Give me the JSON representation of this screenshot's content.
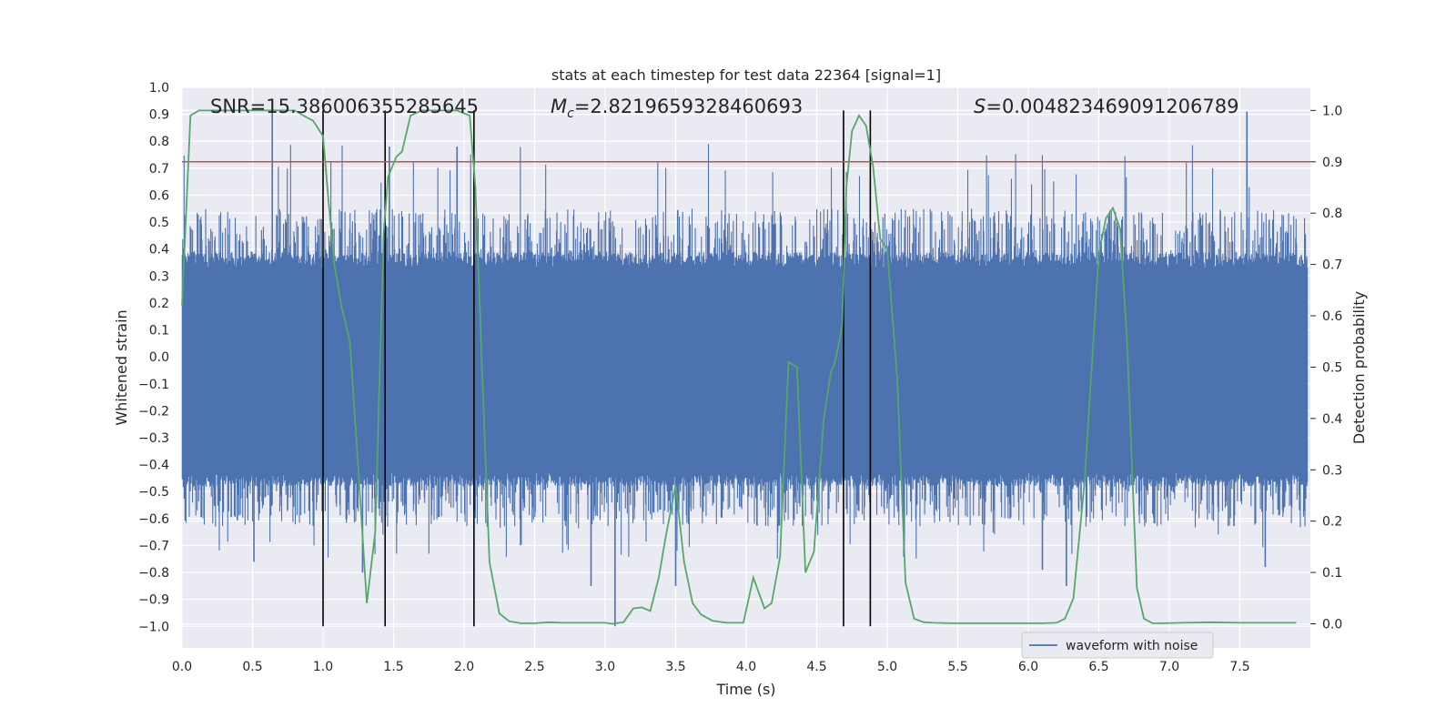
{
  "chart_data": {
    "type": "line",
    "title": "stats at each timestep for test data 22364 [signal=1]",
    "xlabel": "Time (s)",
    "ylabel_left": "Whitened strain",
    "ylabel_right": "Detection probability",
    "xlim": [
      0,
      8
    ],
    "ylim_left": [
      -1.08,
      1.0
    ],
    "ylim_right": [
      -0.047,
      1.045
    ],
    "xticks": [
      "0.0",
      "0.5",
      "1.0",
      "1.5",
      "2.0",
      "2.5",
      "3.0",
      "3.5",
      "4.0",
      "4.5",
      "5.0",
      "5.5",
      "6.0",
      "6.5",
      "7.0",
      "7.5"
    ],
    "yticks_left": [
      "1.0",
      "0.9",
      "0.8",
      "0.7",
      "0.6",
      "0.5",
      "0.4",
      "0.3",
      "0.2",
      "0.1",
      "0.0",
      "−0.1",
      "−0.2",
      "−0.3",
      "−0.4",
      "−0.5",
      "−0.6",
      "−0.7",
      "−0.8",
      "−0.9",
      "−1.0"
    ],
    "yticks_right": [
      "1.0",
      "0.9",
      "0.8",
      "0.7",
      "0.6",
      "0.5",
      "0.4",
      "0.3",
      "0.2",
      "0.1",
      "0.0"
    ],
    "grid": true,
    "annotations": {
      "snr": "SNR=15.386006355285645",
      "mc_symbol": "M",
      "mc_sub": "c",
      "mc_value": "=2.8219659328460693",
      "s_symbol": "S",
      "s_value": "=0.004823469091206789"
    },
    "threshold": {
      "value": 0.9,
      "axis": "right",
      "color": "#c44e52"
    },
    "vertical_lines": [
      1.0,
      1.44,
      2.07,
      4.69,
      4.88
    ],
    "series": [
      {
        "name": "waveform with noise",
        "axis": "left",
        "color": "#4c72b0",
        "envelope": {
          "typical_upper": 0.33,
          "typical_lower": -0.43,
          "max": 0.92,
          "min": -1.0
        },
        "notable_peaks": [
          {
            "t": 0.64,
            "v": 0.91
          },
          {
            "t": 7.55,
            "v": 0.91
          },
          {
            "t": 1.47,
            "v": 0.78
          },
          {
            "t": 1.95,
            "v": 0.78
          },
          {
            "t": 3.07,
            "v": -1.0
          },
          {
            "t": 0.51,
            "v": -0.76
          },
          {
            "t": 2.9,
            "v": -0.85
          },
          {
            "t": 3.5,
            "v": -0.85
          },
          {
            "t": 6.27,
            "v": -0.85
          },
          {
            "t": 7.68,
            "v": -0.78
          },
          {
            "t": 6.1,
            "v": -0.79
          },
          {
            "t": 1.28,
            "v": -0.8
          }
        ]
      },
      {
        "name": "detection probability",
        "axis": "right",
        "color": "#55a868",
        "x": [
          0.0,
          0.06,
          0.12,
          0.2,
          0.3,
          0.4,
          0.5,
          0.6,
          0.7,
          0.8,
          0.86,
          0.93,
          1.0,
          1.04,
          1.08,
          1.13,
          1.19,
          1.25,
          1.31,
          1.37,
          1.43,
          1.46,
          1.52,
          1.56,
          1.62,
          1.7,
          1.8,
          1.95,
          2.04,
          2.08,
          2.13,
          2.18,
          2.25,
          2.32,
          2.4,
          2.5,
          2.6,
          2.7,
          2.8,
          2.9,
          3.0,
          3.05,
          3.13,
          3.2,
          3.26,
          3.32,
          3.38,
          3.43,
          3.5,
          3.56,
          3.62,
          3.68,
          3.76,
          3.86,
          3.98,
          4.05,
          4.13,
          4.18,
          4.24,
          4.3,
          4.36,
          4.42,
          4.48,
          4.55,
          4.6,
          4.63,
          4.68,
          4.71,
          4.75,
          4.8,
          4.85,
          4.9,
          4.95,
          5.0,
          5.07,
          5.13,
          5.19,
          5.26,
          5.33,
          5.45,
          5.65,
          5.9,
          6.1,
          6.2,
          6.26,
          6.32,
          6.4,
          6.5,
          6.55,
          6.6,
          6.65,
          6.7,
          6.77,
          6.82,
          6.88,
          6.95,
          7.1,
          7.3,
          7.5,
          7.7,
          7.9
        ],
        "y": [
          0.62,
          0.99,
          1.0,
          1.0,
          1.0,
          1.0,
          1.0,
          1.0,
          1.0,
          1.0,
          0.99,
          0.98,
          0.95,
          0.82,
          0.7,
          0.62,
          0.55,
          0.3,
          0.04,
          0.18,
          0.76,
          0.87,
          0.91,
          0.92,
          0.99,
          1.0,
          1.0,
          1.0,
          0.99,
          0.85,
          0.48,
          0.12,
          0.02,
          0.005,
          0.001,
          0.001,
          0.003,
          0.002,
          0.002,
          0.002,
          0.002,
          0.0,
          0.003,
          0.03,
          0.032,
          0.025,
          0.09,
          0.17,
          0.27,
          0.12,
          0.04,
          0.018,
          0.006,
          0.002,
          0.002,
          0.09,
          0.03,
          0.04,
          0.13,
          0.51,
          0.5,
          0.1,
          0.14,
          0.4,
          0.49,
          0.51,
          0.58,
          0.85,
          0.96,
          0.99,
          0.97,
          0.89,
          0.75,
          0.73,
          0.48,
          0.08,
          0.01,
          0.003,
          0.002,
          0.001,
          0.001,
          0.001,
          0.001,
          0.002,
          0.01,
          0.05,
          0.28,
          0.72,
          0.79,
          0.81,
          0.77,
          0.55,
          0.07,
          0.01,
          0.001,
          0.001,
          0.002,
          0.003,
          0.002,
          0.002,
          0.002
        ]
      }
    ],
    "legend": {
      "label": "waveform with noise",
      "placement": "lower-right"
    }
  }
}
